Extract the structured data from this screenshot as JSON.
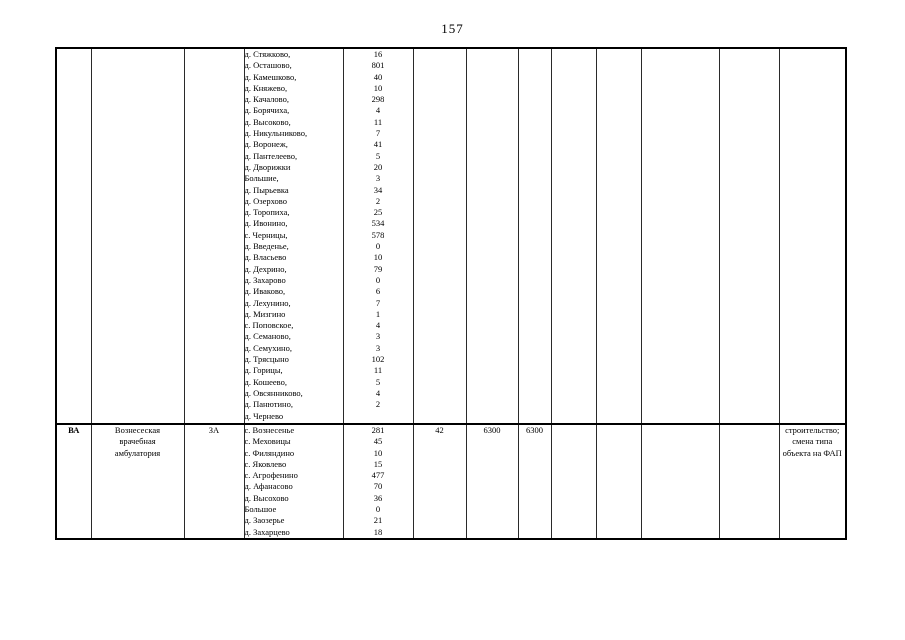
{
  "page_number": "157",
  "table": {
    "rows": [
      {
        "code": "",
        "facility": "",
        "type": "",
        "settlements": [
          {
            "n": "д. Стяжково,",
            "v": "16"
          },
          {
            "n": "д. Осташово,",
            "v": "801"
          },
          {
            "n": "д. Камешково,",
            "v": "40"
          },
          {
            "n": "д. Княжево,",
            "v": "10"
          },
          {
            "n": "д. Качалово,",
            "v": "298"
          },
          {
            "n": "д. Борячиха,",
            "v": "4"
          },
          {
            "n": "д. Высоково,",
            "v": "11"
          },
          {
            "n": "д. Никульниково,",
            "v": "7"
          },
          {
            "n": "д. Воронеж,",
            "v": "41"
          },
          {
            "n": "д. Пантелеево,",
            "v": "5"
          },
          {
            "n": "д. Дворижки",
            "v": "20"
          },
          {
            "n": "Большие,",
            "v": "3"
          },
          {
            "n": "д. Пырьевка",
            "v": "34"
          },
          {
            "n": "д. Озерхово",
            "v": "2"
          },
          {
            "n": "д. Торопиха,",
            "v": "25"
          },
          {
            "n": "д. Ивонино,",
            "v": "534"
          },
          {
            "n": "с. Черницы,",
            "v": "578"
          },
          {
            "n": "д. Введенье,",
            "v": "0"
          },
          {
            "n": "д. Власьево",
            "v": "10"
          },
          {
            "n": "д. Дехрино,",
            "v": "79"
          },
          {
            "n": "д. Захарово",
            "v": "0"
          },
          {
            "n": "д. Иваково,",
            "v": "6"
          },
          {
            "n": "д. Лехунино,",
            "v": "7"
          },
          {
            "n": "д. Мизгино",
            "v": "1"
          },
          {
            "n": "с. Поповское,",
            "v": "4"
          },
          {
            "n": "д. Семаново,",
            "v": "3"
          },
          {
            "n": "д. Семухино,",
            "v": "3"
          },
          {
            "n": "д. Трясцыно",
            "v": "102"
          },
          {
            "n": "д. Горицы,",
            "v": "11"
          },
          {
            "n": "д. Кошеево,",
            "v": "5"
          },
          {
            "n": "д. Овсянниково,",
            "v": "4"
          },
          {
            "n": "д. Панютино,",
            "v": "2"
          },
          {
            "n": "д. Чернево",
            "v": ""
          }
        ],
        "val1": "",
        "val2": "",
        "val3": "",
        "note": ""
      },
      {
        "code": "ВА",
        "facility": "Вознесеская врачебная амбулатория",
        "type": "ЗА",
        "settlements": [
          {
            "n": "с. Вознесенье",
            "v": "281"
          },
          {
            "n": "с. Меховицы",
            "v": "45"
          },
          {
            "n": "с. Филяндино",
            "v": "10"
          },
          {
            "n": "с. Яковлево",
            "v": "15"
          },
          {
            "n": "с. Агрофенино",
            "v": "477"
          },
          {
            "n": "д. Афанасово",
            "v": "70"
          },
          {
            "n": "д. Высохово",
            "v": "36"
          },
          {
            "n": "Большое",
            "v": "0"
          },
          {
            "n": "д. Заозерье",
            "v": "21"
          },
          {
            "n": "д. Захарцево",
            "v": "18"
          }
        ],
        "val1": "42",
        "val2": "6300",
        "val3": "6300",
        "note": "строительство; смена типа объекта на ФАП"
      }
    ]
  }
}
